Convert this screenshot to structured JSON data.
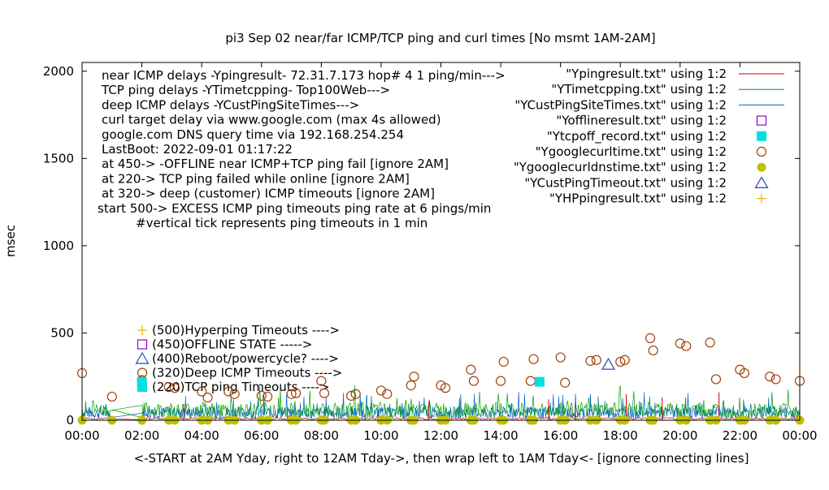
{
  "chart_data": {
    "type": "scatter",
    "title": "pi3 Sep 02  near/far ICMP/TCP ping and curl times [No msmt 1AM-2AM]",
    "xlabel": "<-START at 2AM Yday, right to 12AM Tday->, then wrap left to 1AM Tday<- [ignore connecting lines]",
    "ylabel": "msec",
    "xlim": [
      0,
      24
    ],
    "ylim": [
      0,
      2050
    ],
    "x_ticks": [
      "00:00",
      "02:00",
      "04:00",
      "06:00",
      "08:00",
      "10:00",
      "12:00",
      "14:00",
      "16:00",
      "18:00",
      "20:00",
      "22:00",
      "00:00"
    ],
    "y_ticks": [
      "0",
      "500",
      "1000",
      "1500",
      "2000"
    ],
    "notes": [
      "near ICMP delays -Ypingresult- 72.31.7.173 hop# 4 1 ping/min--->",
      "TCP ping delays -YTimetcpping- Top100Web--->",
      "deep ICMP delays -YCustPingSiteTimes--->",
      "curl target delay via www.google.com (max 4s allowed)",
      "google.com DNS query time via 192.168.254.254",
      "LastBoot: 2022-09-01 01:17:22",
      "at 450-> -OFFLINE near ICMP+TCP ping fail [ignore 2AM]",
      "at 220-> TCP ping failed while online [ignore 2AM]",
      "at 320-> deep (customer) ICMP timeouts [ignore 2AM]",
      "start 500-> EXCESS ICMP ping timeouts ping rate at 6 pings/min",
      "#vertical tick represents ping timeouts in 1 min"
    ],
    "legend_placement": "top-right",
    "legend": [
      {
        "label": "\"Ypingresult.txt\" using 1:2",
        "style": "line",
        "color": "#c00000"
      },
      {
        "label": "\"YTimetcpping.txt\" using 1:2",
        "style": "line",
        "color": "#00a000"
      },
      {
        "label": "\"YCustPingSiteTimes.txt\" using 1:2",
        "style": "line",
        "color": "#0066cc"
      },
      {
        "label": "\"Yofflineresult.txt\" using 1:2",
        "style": "open-square",
        "color": "#9400d3"
      },
      {
        "label": "\"Ytcpoff_record.txt\" using 1:2",
        "style": "filled-square",
        "color": "#00e0e0"
      },
      {
        "label": "\"Ygooglecurltime.txt\" using 1:2",
        "style": "open-circle",
        "color": "#a0400a"
      },
      {
        "label": "\"Ygooglecurldnstime.txt\" using 1:2",
        "style": "filled-circle",
        "color": "#c0c000"
      },
      {
        "label": "\"YCustPingTimeout.txt\" using 1:2",
        "style": "open-triangle",
        "color": "#2050b0"
      },
      {
        "label": "\"YHPpingresult.txt\" using 1:2",
        "style": "plus",
        "color": "#f0b000"
      }
    ],
    "key_markers": [
      {
        "label": "(500)Hyperping Timeouts ---->",
        "style": "plus",
        "color": "#f0b000",
        "value": 500
      },
      {
        "label": "(450)OFFLINE STATE ----->",
        "style": "open-square",
        "color": "#9400d3",
        "value": 450
      },
      {
        "label": "(400)Reboot/powercycle? ---->",
        "style": "open-triangle",
        "color": "#2050b0",
        "value": 400
      },
      {
        "label": "(320)Deep ICMP Timeouts ---->",
        "style": "open-circle",
        "color": "#a0400a",
        "value": 320
      },
      {
        "label": "(220)TCP ping Timeouts ---->",
        "style": "filled-square",
        "color": "#00e0e0",
        "value": 220
      }
    ],
    "series": [
      {
        "name": "\"Ygooglecurltime.txt\" using 1:2",
        "style": "open-circle",
        "color": "#a0400a",
        "points": [
          [
            0.0,
            270
          ],
          [
            1.0,
            135
          ],
          [
            2.0,
            230
          ],
          [
            2.9,
            190
          ],
          [
            3.1,
            185
          ],
          [
            4.0,
            165
          ],
          [
            4.2,
            130
          ],
          [
            4.9,
            165
          ],
          [
            5.1,
            150
          ],
          [
            6.0,
            140
          ],
          [
            6.2,
            135
          ],
          [
            7.0,
            150
          ],
          [
            7.15,
            155
          ],
          [
            8.0,
            225
          ],
          [
            8.1,
            155
          ],
          [
            9.0,
            140
          ],
          [
            9.15,
            150
          ],
          [
            10.0,
            170
          ],
          [
            10.2,
            150
          ],
          [
            11.0,
            200
          ],
          [
            11.1,
            250
          ],
          [
            12.0,
            200
          ],
          [
            12.15,
            185
          ],
          [
            13.0,
            290
          ],
          [
            13.1,
            225
          ],
          [
            14.0,
            225
          ],
          [
            14.1,
            335
          ],
          [
            15.0,
            225
          ],
          [
            15.1,
            350
          ],
          [
            16.0,
            360
          ],
          [
            16.15,
            215
          ],
          [
            17.0,
            340
          ],
          [
            17.2,
            345
          ],
          [
            18.0,
            335
          ],
          [
            18.15,
            345
          ],
          [
            19.0,
            470
          ],
          [
            19.1,
            400
          ],
          [
            20.0,
            440
          ],
          [
            20.2,
            425
          ],
          [
            21.0,
            445
          ],
          [
            21.2,
            235
          ],
          [
            22.0,
            290
          ],
          [
            22.15,
            270
          ],
          [
            23.0,
            250
          ],
          [
            23.2,
            235
          ],
          [
            24.0,
            225
          ]
        ]
      },
      {
        "name": "\"Ygooglecurldnstime.txt\" using 1:2",
        "style": "filled-circle",
        "color": "#c0c000",
        "points": [
          [
            0.0,
            0
          ],
          [
            1.0,
            0
          ],
          [
            2.0,
            0
          ],
          [
            2.9,
            0
          ],
          [
            3.1,
            0
          ],
          [
            4.0,
            0
          ],
          [
            4.2,
            0
          ],
          [
            4.9,
            0
          ],
          [
            5.1,
            0
          ],
          [
            6.0,
            0
          ],
          [
            6.2,
            0
          ],
          [
            7.0,
            0
          ],
          [
            7.15,
            0
          ],
          [
            8.0,
            0
          ],
          [
            8.1,
            0
          ],
          [
            9.0,
            0
          ],
          [
            9.15,
            0
          ],
          [
            10.0,
            0
          ],
          [
            10.2,
            0
          ],
          [
            11.0,
            0
          ],
          [
            11.1,
            0
          ],
          [
            12.0,
            0
          ],
          [
            12.15,
            0
          ],
          [
            13.0,
            0
          ],
          [
            13.1,
            0
          ],
          [
            14.0,
            0
          ],
          [
            14.1,
            0
          ],
          [
            15.0,
            0
          ],
          [
            15.1,
            0
          ],
          [
            16.0,
            0
          ],
          [
            16.15,
            0
          ],
          [
            17.0,
            0
          ],
          [
            17.2,
            0
          ],
          [
            18.0,
            0
          ],
          [
            18.15,
            0
          ],
          [
            19.0,
            0
          ],
          [
            19.1,
            0
          ],
          [
            20.0,
            0
          ],
          [
            20.2,
            0
          ],
          [
            21.0,
            0
          ],
          [
            21.2,
            0
          ],
          [
            22.0,
            0
          ],
          [
            22.15,
            0
          ],
          [
            23.0,
            0
          ],
          [
            23.2,
            0
          ],
          [
            24.0,
            0
          ]
        ]
      },
      {
        "name": "\"Ytcpoff_record.txt\" using 1:2",
        "style": "filled-square",
        "color": "#00e0e0",
        "points": [
          [
            2.0,
            220
          ],
          [
            15.3,
            220
          ]
        ]
      },
      {
        "name": "\"YCustPingTimeout.txt\" using 1:2",
        "style": "open-triangle",
        "color": "#2050b0",
        "points": [
          [
            17.6,
            320
          ]
        ]
      }
    ]
  }
}
